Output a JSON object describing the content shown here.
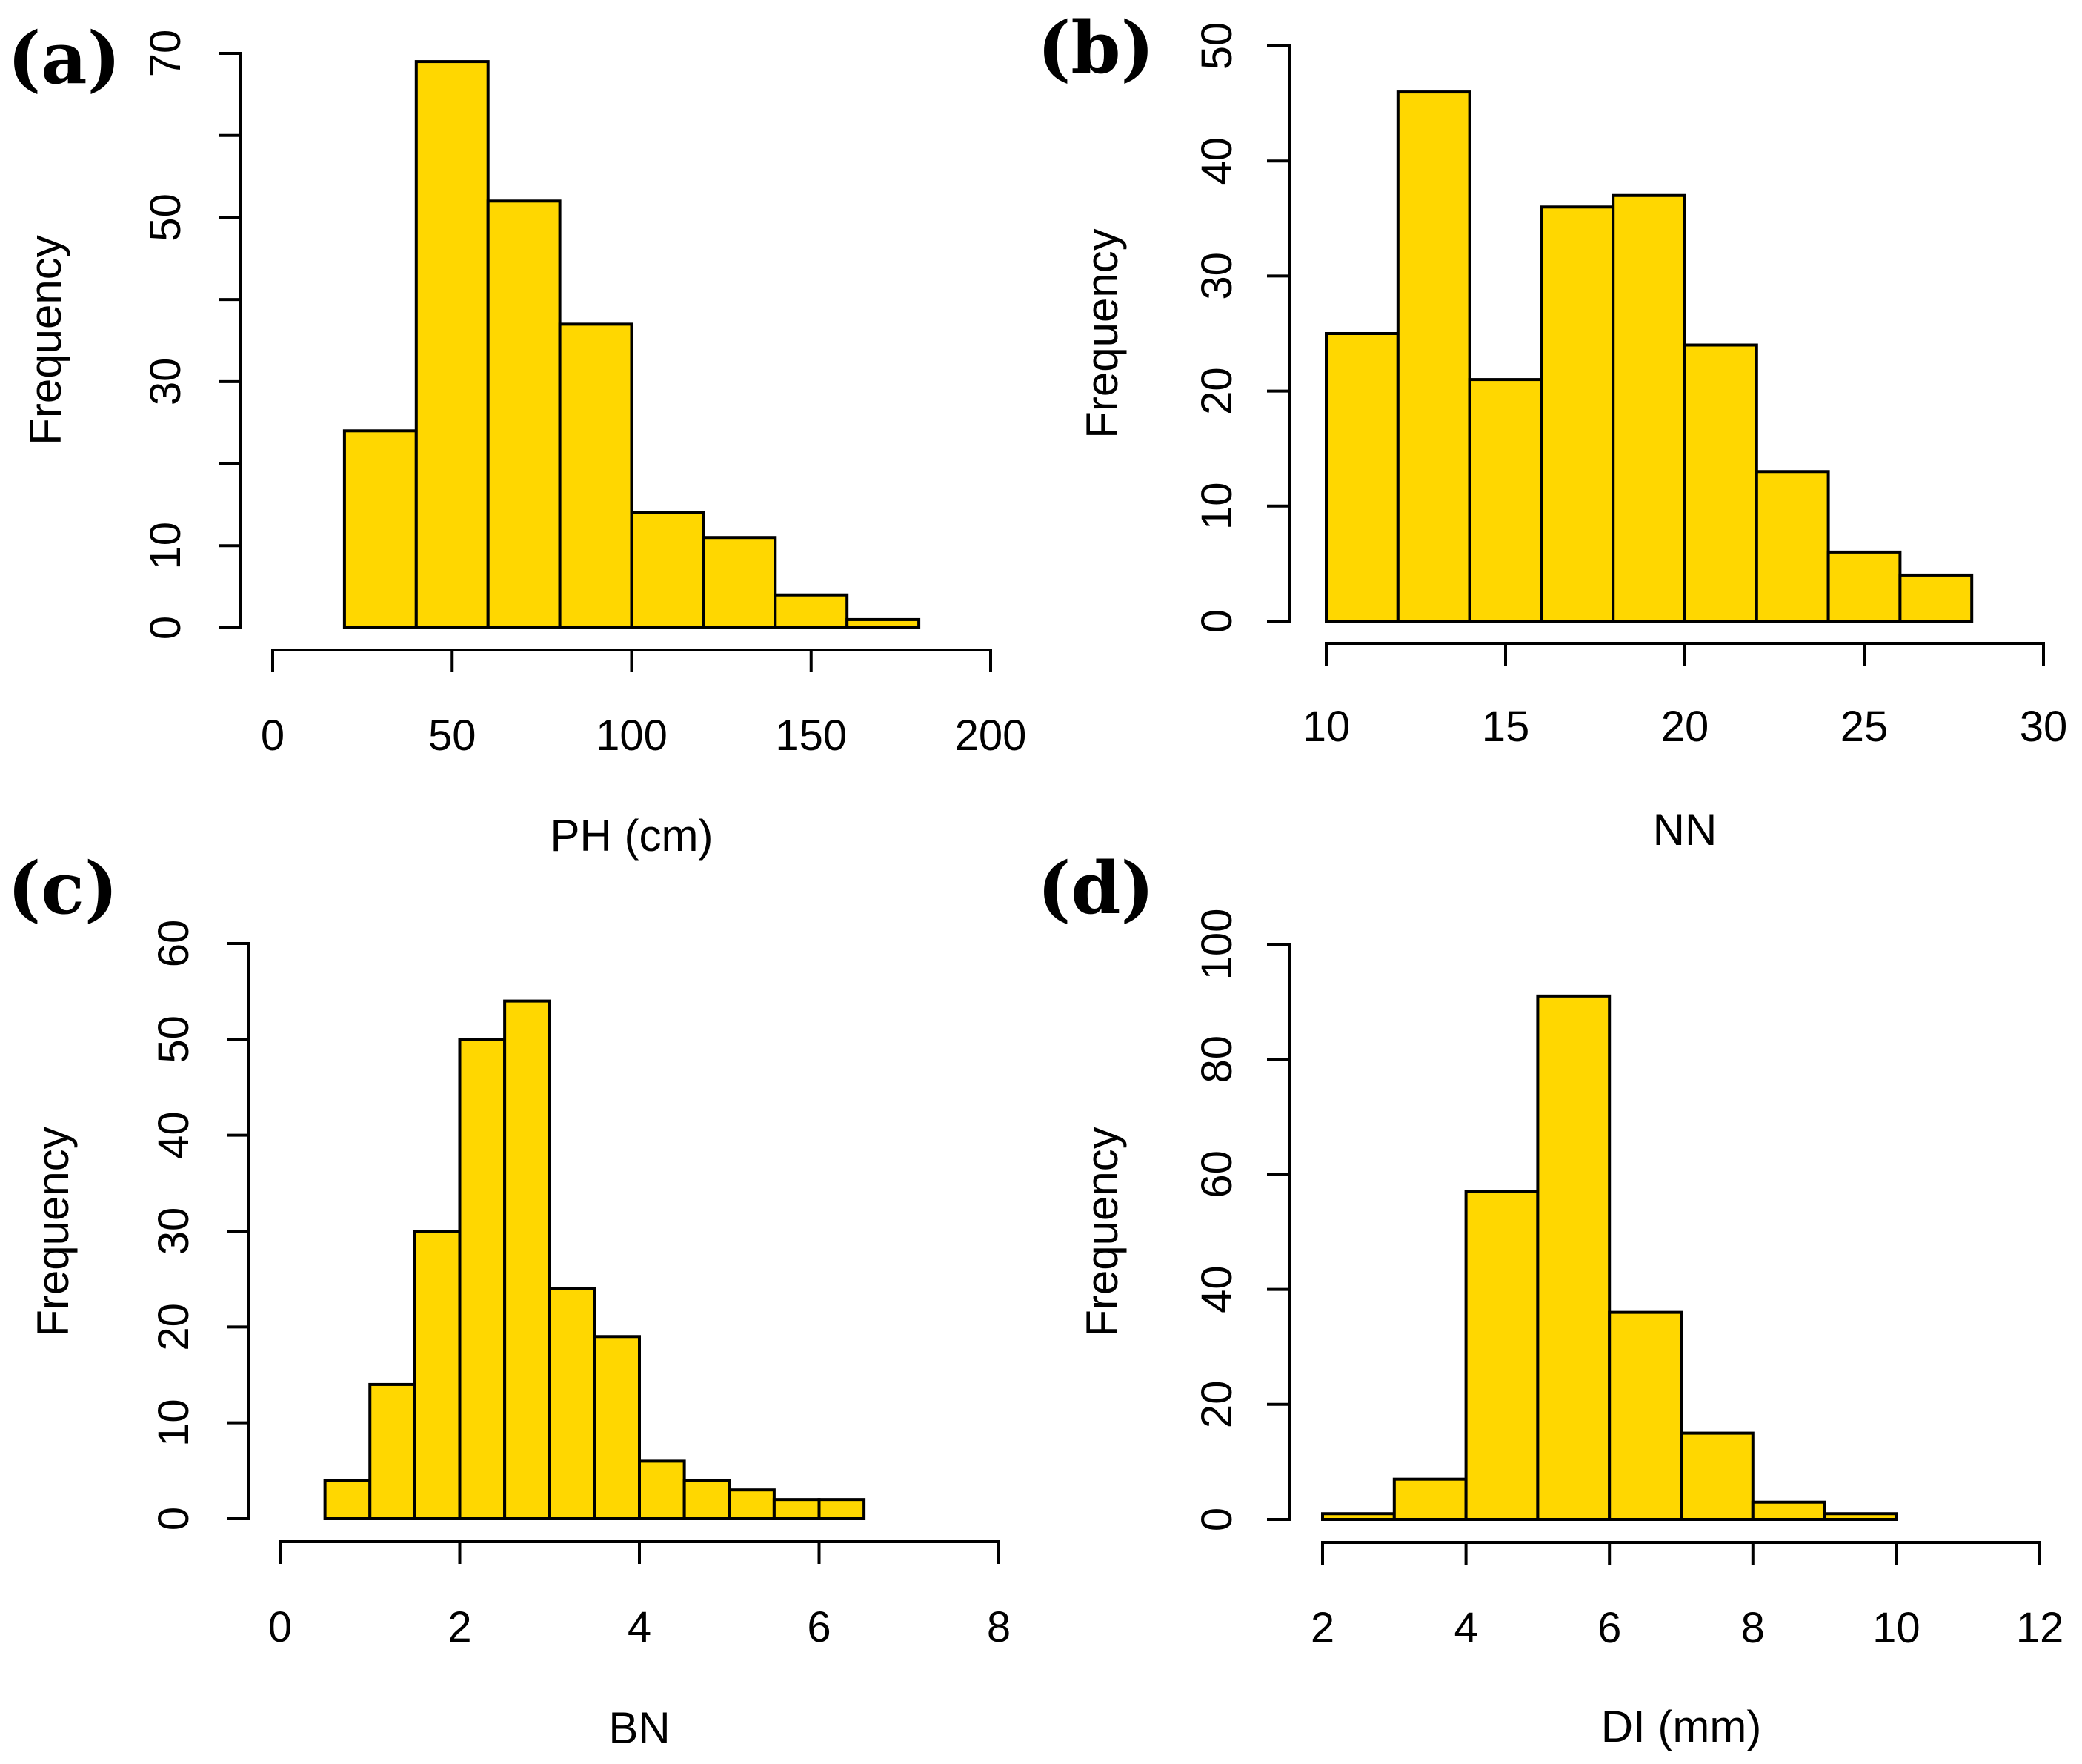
{
  "colors": {
    "bar_fill": "#FFD700",
    "stroke": "#000000",
    "background": "#FFFFFF"
  },
  "chart_data": [
    {
      "panel_label": "(a)",
      "type": "bar",
      "subtype": "histogram",
      "xlabel": "PH (cm)",
      "ylabel": "Frequency",
      "xlim": [
        0,
        200
      ],
      "ylim": [
        0,
        70
      ],
      "x_ticks": [
        0,
        50,
        100,
        150,
        200
      ],
      "y_ticks": [
        0,
        10,
        30,
        50,
        70
      ],
      "y_minor_ticks": [
        20,
        40,
        60
      ],
      "bins": [
        {
          "from": 20,
          "to": 40,
          "count": 24
        },
        {
          "from": 40,
          "to": 60,
          "count": 69
        },
        {
          "from": 60,
          "to": 80,
          "count": 52
        },
        {
          "from": 80,
          "to": 100,
          "count": 37
        },
        {
          "from": 100,
          "to": 120,
          "count": 14
        },
        {
          "from": 120,
          "to": 140,
          "count": 11
        },
        {
          "from": 140,
          "to": 160,
          "count": 4
        },
        {
          "from": 160,
          "to": 180,
          "count": 1
        }
      ]
    },
    {
      "panel_label": "(b)",
      "type": "bar",
      "subtype": "histogram",
      "xlabel": "NN",
      "ylabel": "Frequency",
      "xlim": [
        10,
        30
      ],
      "ylim": [
        0,
        50
      ],
      "x_ticks": [
        10,
        15,
        20,
        25,
        30
      ],
      "y_ticks": [
        0,
        10,
        20,
        30,
        40,
        50
      ],
      "y_minor_ticks": [],
      "bins": [
        {
          "from": 10,
          "to": 12,
          "count": 25
        },
        {
          "from": 12,
          "to": 14,
          "count": 46
        },
        {
          "from": 14,
          "to": 16,
          "count": 21
        },
        {
          "from": 16,
          "to": 18,
          "count": 36
        },
        {
          "from": 18,
          "to": 20,
          "count": 37
        },
        {
          "from": 20,
          "to": 22,
          "count": 24
        },
        {
          "from": 22,
          "to": 24,
          "count": 13
        },
        {
          "from": 24,
          "to": 26,
          "count": 6
        },
        {
          "from": 26,
          "to": 28,
          "count": 4
        }
      ]
    },
    {
      "panel_label": "(c)",
      "type": "bar",
      "subtype": "histogram",
      "xlabel": "BN",
      "ylabel": "Frequency",
      "xlim": [
        0,
        8
      ],
      "ylim": [
        0,
        60
      ],
      "x_ticks": [
        0,
        2,
        4,
        6,
        8
      ],
      "y_ticks": [
        0,
        10,
        20,
        30,
        40,
        50,
        60
      ],
      "y_minor_ticks": [],
      "bins": [
        {
          "from": 0.5,
          "to": 1.0,
          "count": 4
        },
        {
          "from": 1.0,
          "to": 1.5,
          "count": 14
        },
        {
          "from": 1.5,
          "to": 2.0,
          "count": 30
        },
        {
          "from": 2.0,
          "to": 2.5,
          "count": 50
        },
        {
          "from": 2.5,
          "to": 3.0,
          "count": 54
        },
        {
          "from": 3.0,
          "to": 3.5,
          "count": 24
        },
        {
          "from": 3.5,
          "to": 4.0,
          "count": 19
        },
        {
          "from": 4.0,
          "to": 4.5,
          "count": 6
        },
        {
          "from": 4.5,
          "to": 5.0,
          "count": 4
        },
        {
          "from": 5.0,
          "to": 5.5,
          "count": 3
        },
        {
          "from": 5.5,
          "to": 6.0,
          "count": 2
        },
        {
          "from": 6.0,
          "to": 6.5,
          "count": 2
        }
      ]
    },
    {
      "panel_label": "(d)",
      "type": "bar",
      "subtype": "histogram",
      "xlabel": "DI (mm)",
      "ylabel": "Frequency",
      "xlim": [
        2,
        12
      ],
      "ylim": [
        0,
        100
      ],
      "x_ticks": [
        2,
        4,
        6,
        8,
        10,
        12
      ],
      "y_ticks": [
        0,
        20,
        40,
        60,
        80,
        100
      ],
      "y_minor_ticks": [],
      "bins": [
        {
          "from": 2,
          "to": 3,
          "count": 1
        },
        {
          "from": 3,
          "to": 4,
          "count": 7
        },
        {
          "from": 4,
          "to": 5,
          "count": 57
        },
        {
          "from": 5,
          "to": 6,
          "count": 91
        },
        {
          "from": 6,
          "to": 7,
          "count": 36
        },
        {
          "from": 7,
          "to": 8,
          "count": 15
        },
        {
          "from": 8,
          "to": 9,
          "count": 3
        },
        {
          "from": 9,
          "to": 10,
          "count": 1
        }
      ]
    }
  ]
}
